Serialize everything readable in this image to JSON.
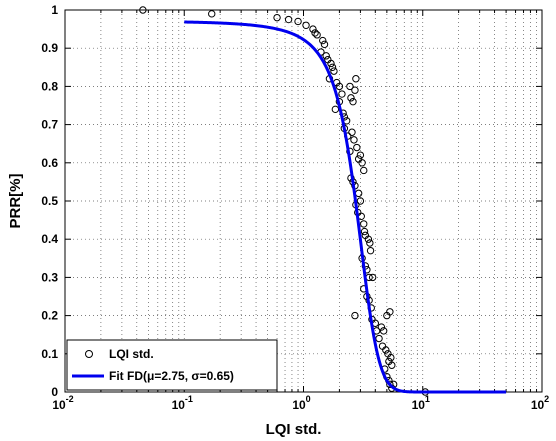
{
  "chart_data": {
    "type": "scatter",
    "xlabel": "LQI std.",
    "ylabel": "PRR[%]",
    "x_scale": "log",
    "xlim": [
      0.01,
      100
    ],
    "ylim": [
      0,
      1
    ],
    "x_ticks": [
      0.01,
      0.1,
      1,
      10,
      100
    ],
    "x_tick_labels": [
      {
        "base": "10",
        "exp": "-2"
      },
      {
        "base": "10",
        "exp": "-1"
      },
      {
        "base": "10",
        "exp": "0"
      },
      {
        "base": "10",
        "exp": "1"
      },
      {
        "base": "10",
        "exp": "2"
      }
    ],
    "y_ticks": [
      0,
      0.1,
      0.2,
      0.3,
      0.4,
      0.5,
      0.6,
      0.7,
      0.8,
      0.9,
      1
    ],
    "y_tick_labels": [
      "0",
      "0.1",
      "0.2",
      "0.3",
      "0.4",
      "0.5",
      "0.6",
      "0.7",
      "0.8",
      "0.9",
      "1"
    ],
    "grid": true,
    "legend_position": "bottom-left",
    "series": [
      {
        "name": "LQI std.",
        "kind": "scatter",
        "marker": "open-circle",
        "color": "#000000",
        "points": [
          [
            0.045,
            1.0
          ],
          [
            0.17,
            0.99
          ],
          [
            0.6,
            0.98
          ],
          [
            0.75,
            0.975
          ],
          [
            0.9,
            0.97
          ],
          [
            1.05,
            0.96
          ],
          [
            1.2,
            0.95
          ],
          [
            1.25,
            0.94
          ],
          [
            1.3,
            0.935
          ],
          [
            1.45,
            0.92
          ],
          [
            1.5,
            0.91
          ],
          [
            1.4,
            0.89
          ],
          [
            1.55,
            0.88
          ],
          [
            1.6,
            0.87
          ],
          [
            1.7,
            0.86
          ],
          [
            1.75,
            0.85
          ],
          [
            1.8,
            0.84
          ],
          [
            1.65,
            0.82
          ],
          [
            1.9,
            0.81
          ],
          [
            2.0,
            0.8
          ],
          [
            2.1,
            0.78
          ],
          [
            2.0,
            0.76
          ],
          [
            1.85,
            0.74
          ],
          [
            2.15,
            0.73
          ],
          [
            2.2,
            0.72
          ],
          [
            2.3,
            0.71
          ],
          [
            2.45,
            0.8
          ],
          [
            2.5,
            0.77
          ],
          [
            2.6,
            0.76
          ],
          [
            2.7,
            0.79
          ],
          [
            2.75,
            0.82
          ],
          [
            2.2,
            0.69
          ],
          [
            2.35,
            0.67
          ],
          [
            2.55,
            0.68
          ],
          [
            2.65,
            0.66
          ],
          [
            2.45,
            0.63
          ],
          [
            2.8,
            0.64
          ],
          [
            3.0,
            0.62
          ],
          [
            2.9,
            0.61
          ],
          [
            3.1,
            0.6
          ],
          [
            3.2,
            0.58
          ],
          [
            2.5,
            0.56
          ],
          [
            2.6,
            0.55
          ],
          [
            2.7,
            0.54
          ],
          [
            2.9,
            0.52
          ],
          [
            3.0,
            0.5
          ],
          [
            2.75,
            0.49
          ],
          [
            2.85,
            0.47
          ],
          [
            3.05,
            0.46
          ],
          [
            3.2,
            0.44
          ],
          [
            3.25,
            0.42
          ],
          [
            3.3,
            0.41
          ],
          [
            3.5,
            0.4
          ],
          [
            3.6,
            0.39
          ],
          [
            3.65,
            0.37
          ],
          [
            3.1,
            0.35
          ],
          [
            3.3,
            0.33
          ],
          [
            3.4,
            0.32
          ],
          [
            3.55,
            0.3
          ],
          [
            3.8,
            0.3
          ],
          [
            3.2,
            0.27
          ],
          [
            3.4,
            0.25
          ],
          [
            3.55,
            0.24
          ],
          [
            3.7,
            0.22
          ],
          [
            2.7,
            0.2
          ],
          [
            3.75,
            0.19
          ],
          [
            4.0,
            0.18
          ],
          [
            4.1,
            0.16
          ],
          [
            4.5,
            0.17
          ],
          [
            4.7,
            0.16
          ],
          [
            5.0,
            0.2
          ],
          [
            5.3,
            0.21
          ],
          [
            4.3,
            0.14
          ],
          [
            4.6,
            0.12
          ],
          [
            4.9,
            0.11
          ],
          [
            5.1,
            0.1
          ],
          [
            5.4,
            0.09
          ],
          [
            5.2,
            0.08
          ],
          [
            5.5,
            0.07
          ],
          [
            4.8,
            0.06
          ],
          [
            5.0,
            0.04
          ],
          [
            5.2,
            0.03
          ],
          [
            5.3,
            0.02
          ],
          [
            5.5,
            0.01
          ],
          [
            5.7,
            0.02
          ],
          [
            10.5,
            0.0
          ]
        ]
      },
      {
        "name": "Fit FD(μ=2.75, σ=0.65)",
        "kind": "line",
        "color": "#0000ee",
        "formula": "1/(1+exp((x-2.75)/0.65))",
        "mu": 2.75,
        "sigma": 0.65,
        "x_range": [
          0.1,
          50
        ],
        "asymptote": 0.985
      }
    ],
    "legend": [
      {
        "label": "LQI std.",
        "marker": "open-circle"
      },
      {
        "label": "Fit FD(μ=2.75, σ=0.65)",
        "marker": "line"
      }
    ]
  }
}
